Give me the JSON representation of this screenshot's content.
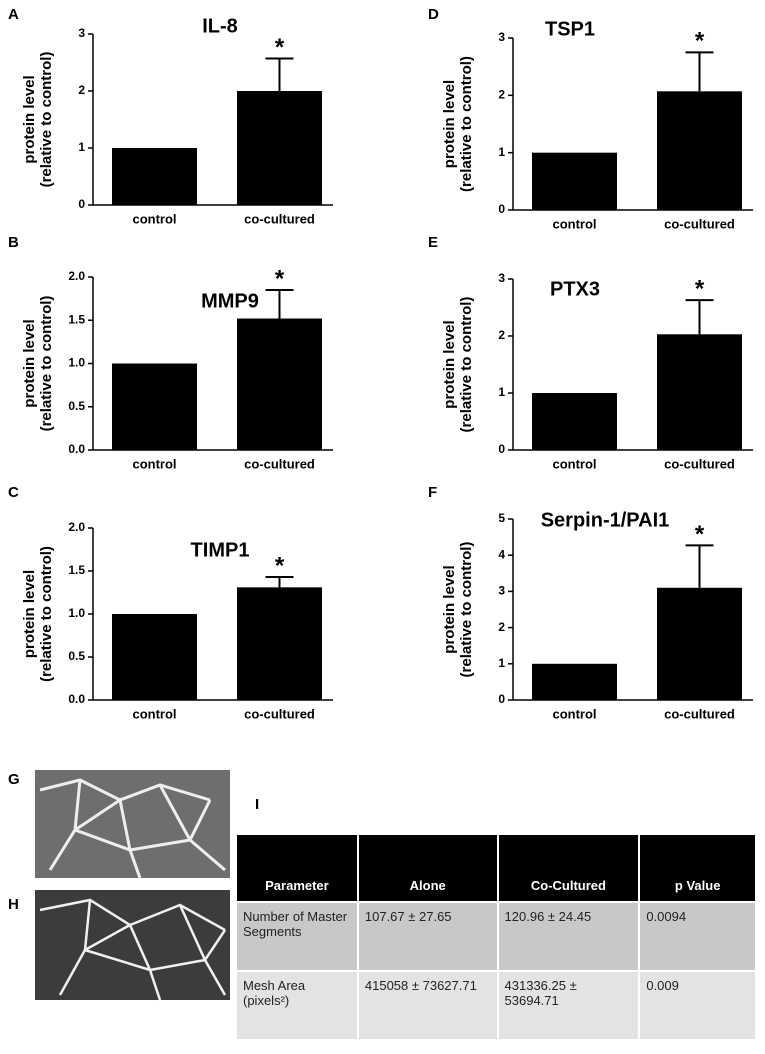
{
  "panels": [
    "A",
    "B",
    "C",
    "D",
    "E",
    "F",
    "G",
    "H",
    "I"
  ],
  "chart_data": [
    {
      "type": "bar",
      "title": "IL-8",
      "ylabel": [
        "protein level",
        "(relative to control)"
      ],
      "categories": [
        "control",
        "co-cultured"
      ],
      "values": [
        1,
        2.0
      ],
      "errors": [
        null,
        0.57
      ],
      "annotations": [
        null,
        "*"
      ],
      "color": "#000000",
      "ylim": [
        0,
        3
      ],
      "yticks": [
        0,
        1,
        2,
        3
      ]
    },
    {
      "type": "bar",
      "title": "MMP9",
      "ylabel": [
        "protein level",
        "(relative to control)"
      ],
      "categories": [
        "control",
        "co-cultured"
      ],
      "values": [
        1,
        1.52
      ],
      "errors": [
        null,
        0.33
      ],
      "annotations": [
        null,
        "*"
      ],
      "color": "#000000",
      "ylim": [
        0,
        2
      ],
      "yticks": [
        {
          "value": 0,
          "label": "0.0"
        },
        {
          "value": 0.5,
          "label": "0.5"
        },
        {
          "value": 1,
          "label": "1.0"
        },
        {
          "value": 1.5,
          "label": "1.5"
        },
        {
          "value": 2,
          "label": "2.0"
        }
      ]
    },
    {
      "type": "bar",
      "title": "TIMP1",
      "ylabel": [
        "protein level",
        "(relative to control)"
      ],
      "categories": [
        "control",
        "co-cultured"
      ],
      "values": [
        1,
        1.31
      ],
      "errors": [
        null,
        0.12
      ],
      "annotations": [
        null,
        "*"
      ],
      "color": "#000000",
      "ylim": [
        0,
        2
      ],
      "yticks": [
        {
          "value": 0,
          "label": "0.0"
        },
        {
          "value": 0.5,
          "label": "0.5"
        },
        {
          "value": 1,
          "label": "1.0"
        },
        {
          "value": 1.5,
          "label": "1.5"
        },
        {
          "value": 2,
          "label": "2.0"
        }
      ]
    },
    {
      "type": "bar",
      "title": "TSP1",
      "ylabel": [
        "protein level",
        "(relative to control)"
      ],
      "categories": [
        "control",
        "co-cultured"
      ],
      "values": [
        1,
        2.07
      ],
      "errors": [
        null,
        0.68
      ],
      "annotations": [
        null,
        "*"
      ],
      "color": "#000000",
      "ylim": [
        0,
        3
      ],
      "yticks": [
        0,
        1,
        2,
        3
      ]
    },
    {
      "type": "bar",
      "title": "PTX3",
      "ylabel": [
        "protein level",
        "(relative to control)"
      ],
      "categories": [
        "control",
        "co-cultured"
      ],
      "values": [
        1,
        2.03
      ],
      "errors": [
        null,
        0.6
      ],
      "annotations": [
        null,
        "*"
      ],
      "color": "#000000",
      "ylim": [
        0,
        3
      ],
      "yticks": [
        0,
        1,
        2,
        3
      ]
    },
    {
      "type": "bar",
      "title": "Serpin-1/PAI1",
      "ylabel": [
        "protein level",
        "(relative to control)"
      ],
      "categories": [
        "control",
        "co-cultured"
      ],
      "values": [
        1,
        3.1
      ],
      "errors": [
        null,
        1.17
      ],
      "annotations": [
        null,
        "*"
      ],
      "color": "#000000",
      "ylim": [
        0,
        5
      ],
      "yticks": [
        0,
        1,
        2,
        3,
        4,
        5
      ]
    }
  ],
  "table": {
    "header": [
      "Parameter",
      "Alone",
      "Co-Cultured",
      "p Value"
    ],
    "rows": [
      [
        "Number of Master Segments",
        "107.67 ± 27.65",
        "120.96 ± 24.45",
        "0.0094"
      ],
      [
        "Mesh Area (pixels²)",
        "415058 ± 73627.71",
        "431336.25 ± 53694.71",
        "0.009"
      ]
    ]
  }
}
